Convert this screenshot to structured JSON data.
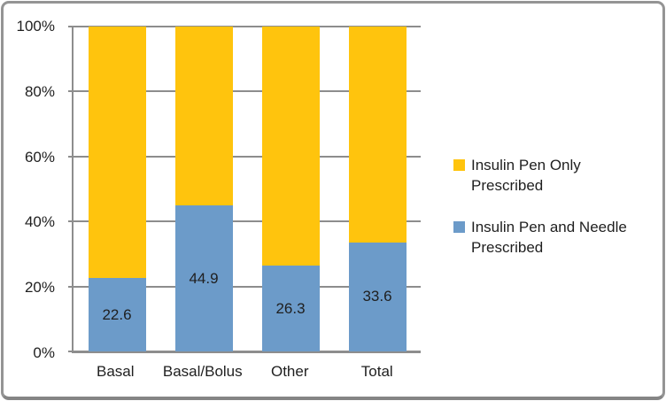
{
  "chart_data": {
    "type": "bar",
    "subtype": "stacked-100-percent",
    "title": "",
    "xlabel": "",
    "ylabel": "",
    "grid": true,
    "legend_position": "right",
    "ylim": [
      0,
      100
    ],
    "categories": [
      "Basal",
      "Basal/Bolus",
      "Other",
      "Total"
    ],
    "series": [
      {
        "name": "Insulin Pen and Needle Prescribed",
        "color": "#6C9BC9",
        "values": [
          22.6,
          44.9,
          26.3,
          33.6
        ],
        "data_labels": [
          "22.6",
          "44.9",
          "26.3",
          "33.6"
        ]
      },
      {
        "name": "Insulin Pen Only Prescribed",
        "color": "#FFC40D",
        "fills_remainder_to": 100,
        "data_labels": []
      }
    ],
    "yticks": [
      {
        "label": "100%",
        "value": 100
      },
      {
        "label": "80%",
        "value": 80
      },
      {
        "label": "60%",
        "value": 60
      },
      {
        "label": "40%",
        "value": 40
      },
      {
        "label": "20%",
        "value": 20
      },
      {
        "label": "0%",
        "value": 0
      }
    ],
    "legend_items": [
      {
        "label": "Insulin Pen Only Prescribed",
        "color": "#FFC40D"
      },
      {
        "label": "Insulin Pen and Needle Prescribed",
        "color": "#6C9BC9"
      }
    ]
  },
  "colors": {
    "pen_only_yellow": "#FFC40D",
    "pen_and_needle_blue": "#6C9BC9",
    "gridline": "#8d8d8d",
    "axis": "#8d8d8d",
    "text": "#1f1f1f",
    "frame_border": "#949494",
    "frame_border_bottom": "#858585",
    "background": "#ffffff"
  }
}
